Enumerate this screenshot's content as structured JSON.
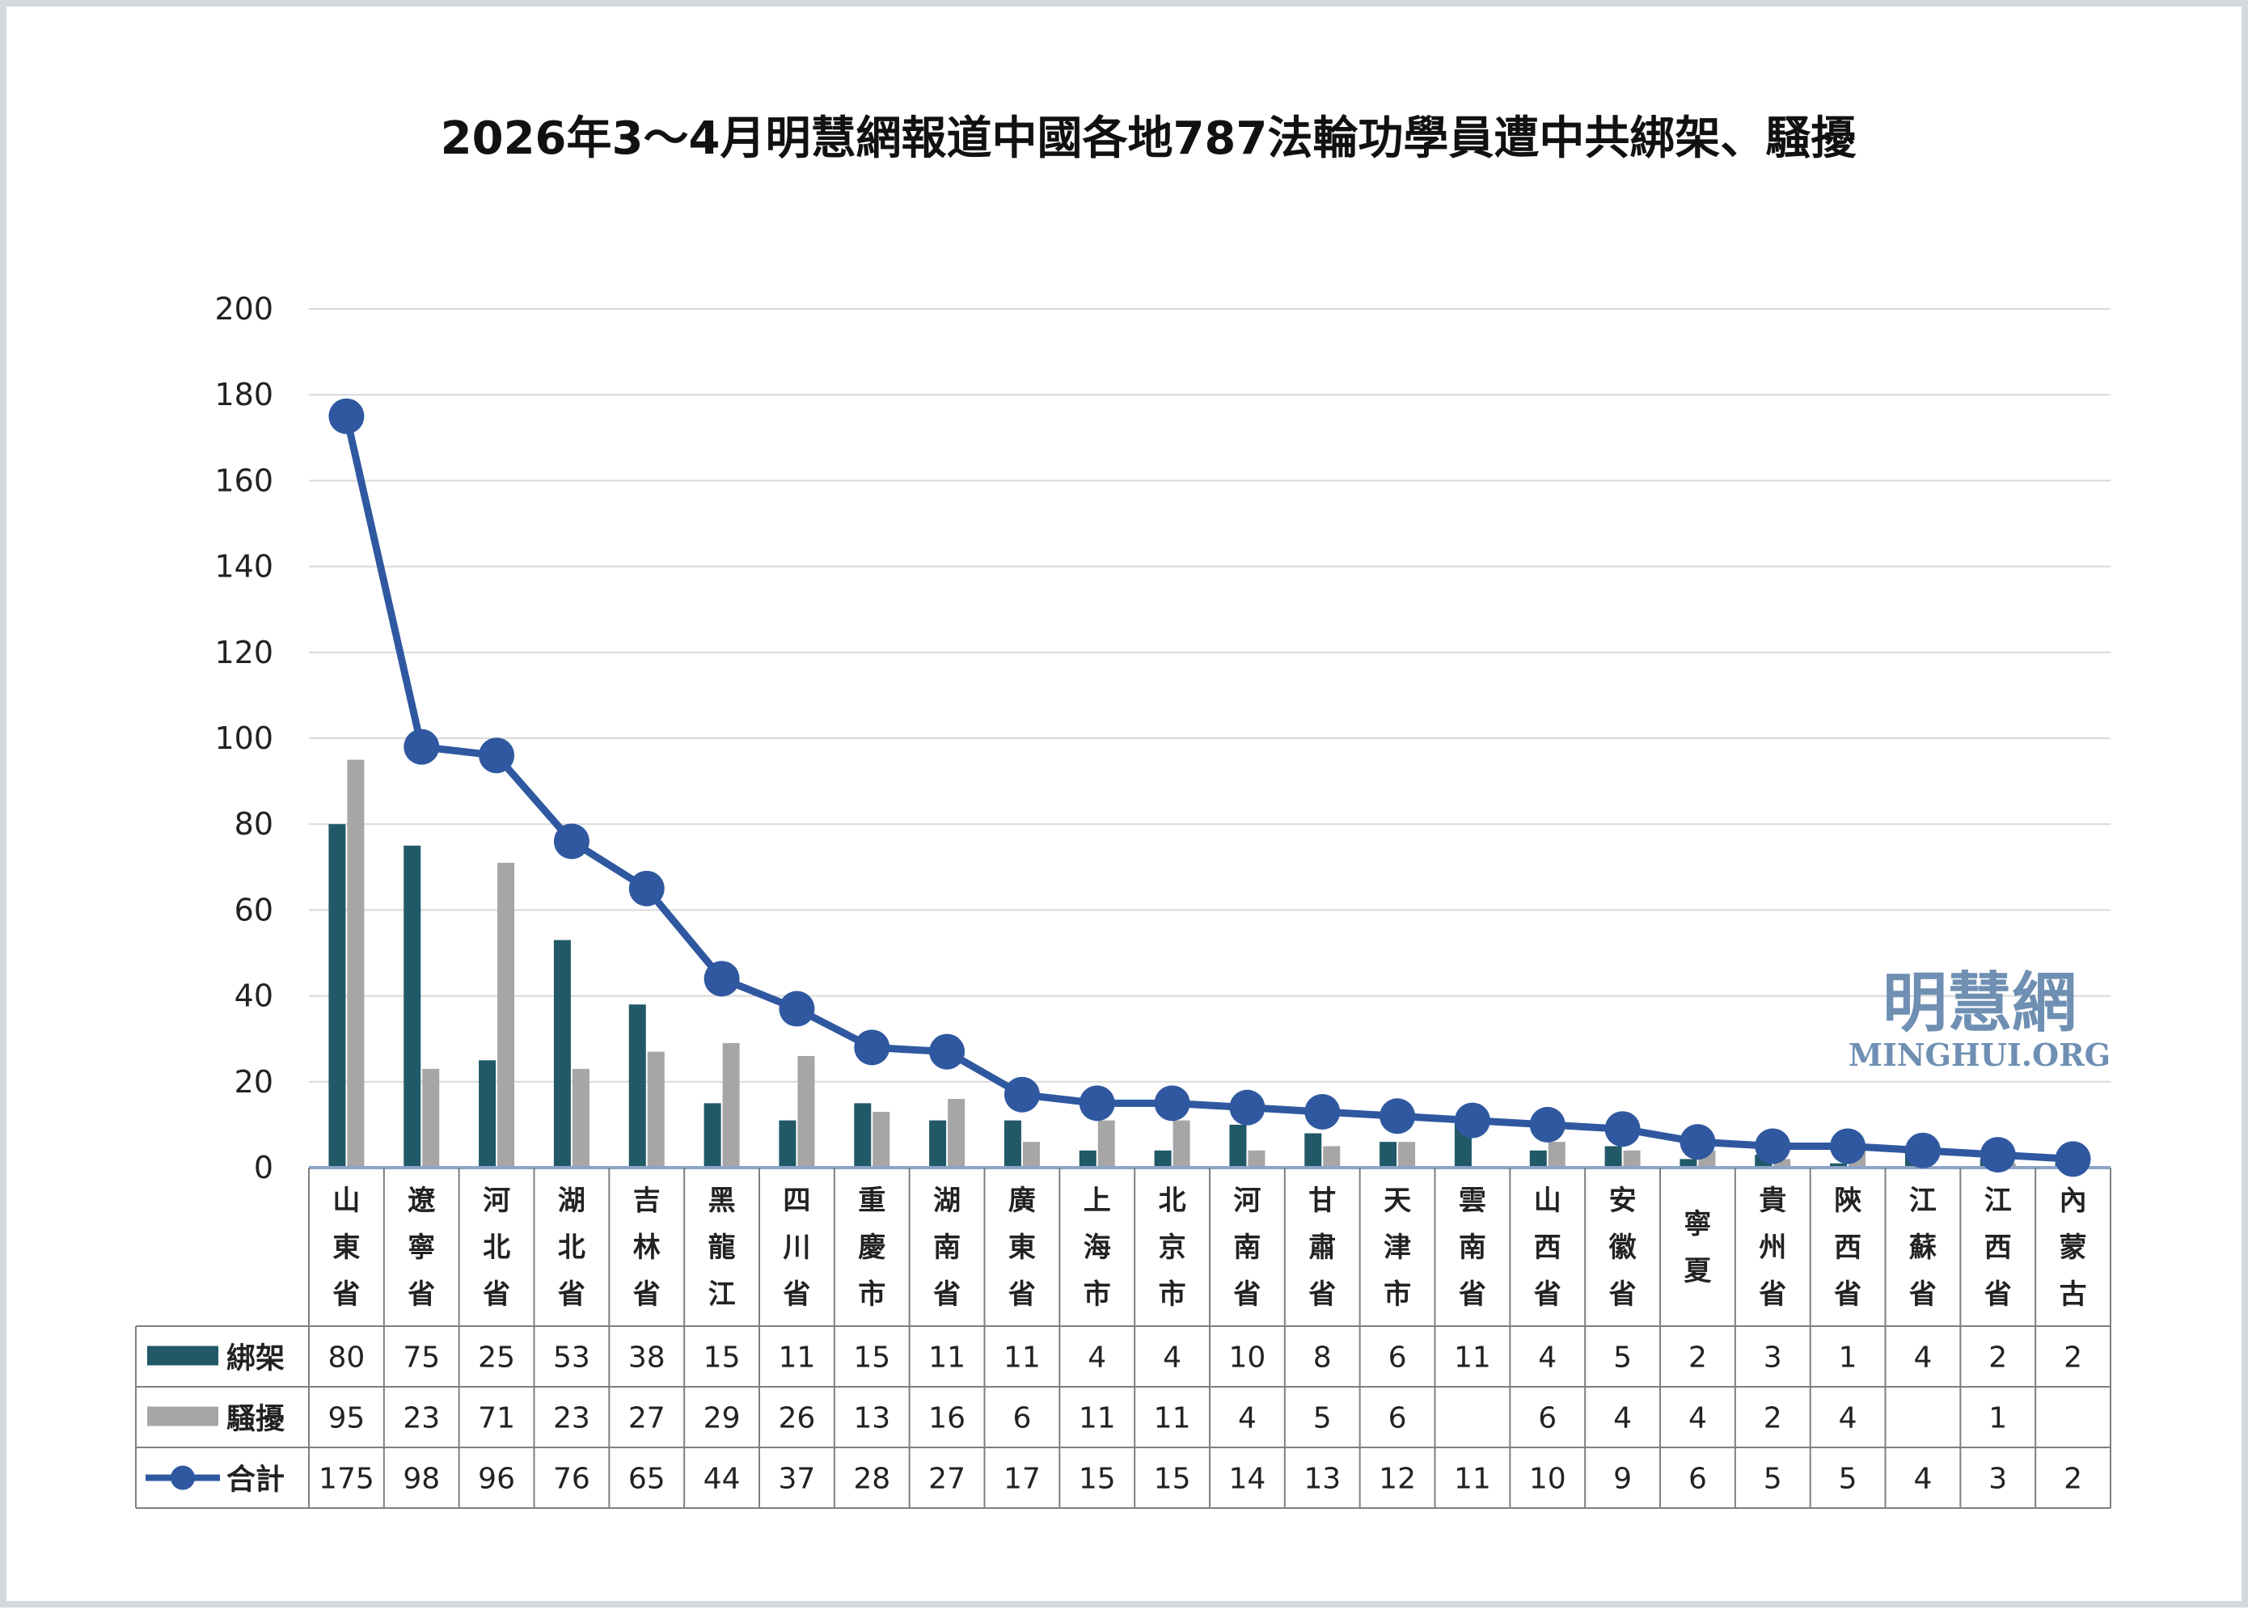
{
  "chart_data": {
    "type": "bar",
    "title": "2026年3～4月明慧網報道中國各地787法輪功學員遭中共綁架、騷擾",
    "categories": [
      "山東省",
      "遼寧省",
      "河北省",
      "湖北省",
      "吉林省",
      "黑龍江",
      "四川省",
      "重慶市",
      "湖南省",
      "廣東省",
      "上海市",
      "北京市",
      "河南省",
      "甘肅省",
      "天津市",
      "雲南省",
      "山西省",
      "安徽省",
      "寧夏",
      "貴州省",
      "陝西省",
      "江蘇省",
      "江西省",
      "內蒙古"
    ],
    "series": [
      {
        "name": "綁架",
        "type": "bar",
        "color": "#215967",
        "values": [
          80,
          75,
          25,
          53,
          38,
          15,
          11,
          15,
          11,
          11,
          4,
          4,
          10,
          8,
          6,
          11,
          4,
          5,
          2,
          3,
          1,
          4,
          2,
          2
        ],
        "labels": [
          "80",
          "75",
          "25",
          "53",
          "38",
          "15",
          "11",
          "15",
          "11",
          "11",
          "4",
          "4",
          "10",
          "8",
          "6",
          "11",
          "4",
          "5",
          "2",
          "3",
          "1",
          "4",
          "2",
          "2"
        ]
      },
      {
        "name": "騷擾",
        "type": "bar",
        "color": "#a6a6a6",
        "values": [
          95,
          23,
          71,
          23,
          27,
          29,
          26,
          13,
          16,
          6,
          11,
          11,
          4,
          5,
          6,
          0,
          6,
          4,
          4,
          2,
          4,
          0,
          1,
          0
        ],
        "labels": [
          "95",
          "23",
          "71",
          "23",
          "27",
          "29",
          "26",
          "13",
          "16",
          "6",
          "11",
          "11",
          "4",
          "5",
          "6",
          "",
          "6",
          "4",
          "4",
          "2",
          "4",
          "",
          "1",
          ""
        ]
      },
      {
        "name": "合計",
        "type": "line",
        "color": "#2f58a0",
        "values": [
          175,
          98,
          96,
          76,
          65,
          44,
          37,
          28,
          27,
          17,
          15,
          15,
          14,
          13,
          12,
          11,
          10,
          9,
          6,
          5,
          5,
          4,
          3,
          2
        ],
        "labels": [
          "175",
          "98",
          "96",
          "76",
          "65",
          "44",
          "37",
          "28",
          "27",
          "17",
          "15",
          "15",
          "14",
          "13",
          "12",
          "11",
          "10",
          "9",
          "6",
          "5",
          "5",
          "4",
          "3",
          "2"
        ]
      }
    ],
    "y_ticks": [
      "0",
      "20",
      "40",
      "60",
      "80",
      "100",
      "120",
      "140",
      "160",
      "180",
      "200"
    ],
    "ylim": [
      0,
      200
    ],
    "grid": true,
    "legend_placement": "data-table"
  },
  "watermark": {
    "cn": "明慧網",
    "en": "MINGHUI.ORG"
  },
  "colors": {
    "kidnap": "#215967",
    "harass": "#a6a6a6",
    "total": "#2f58a0",
    "grid": "#d9d9d9",
    "border": "#d4d9e0"
  }
}
